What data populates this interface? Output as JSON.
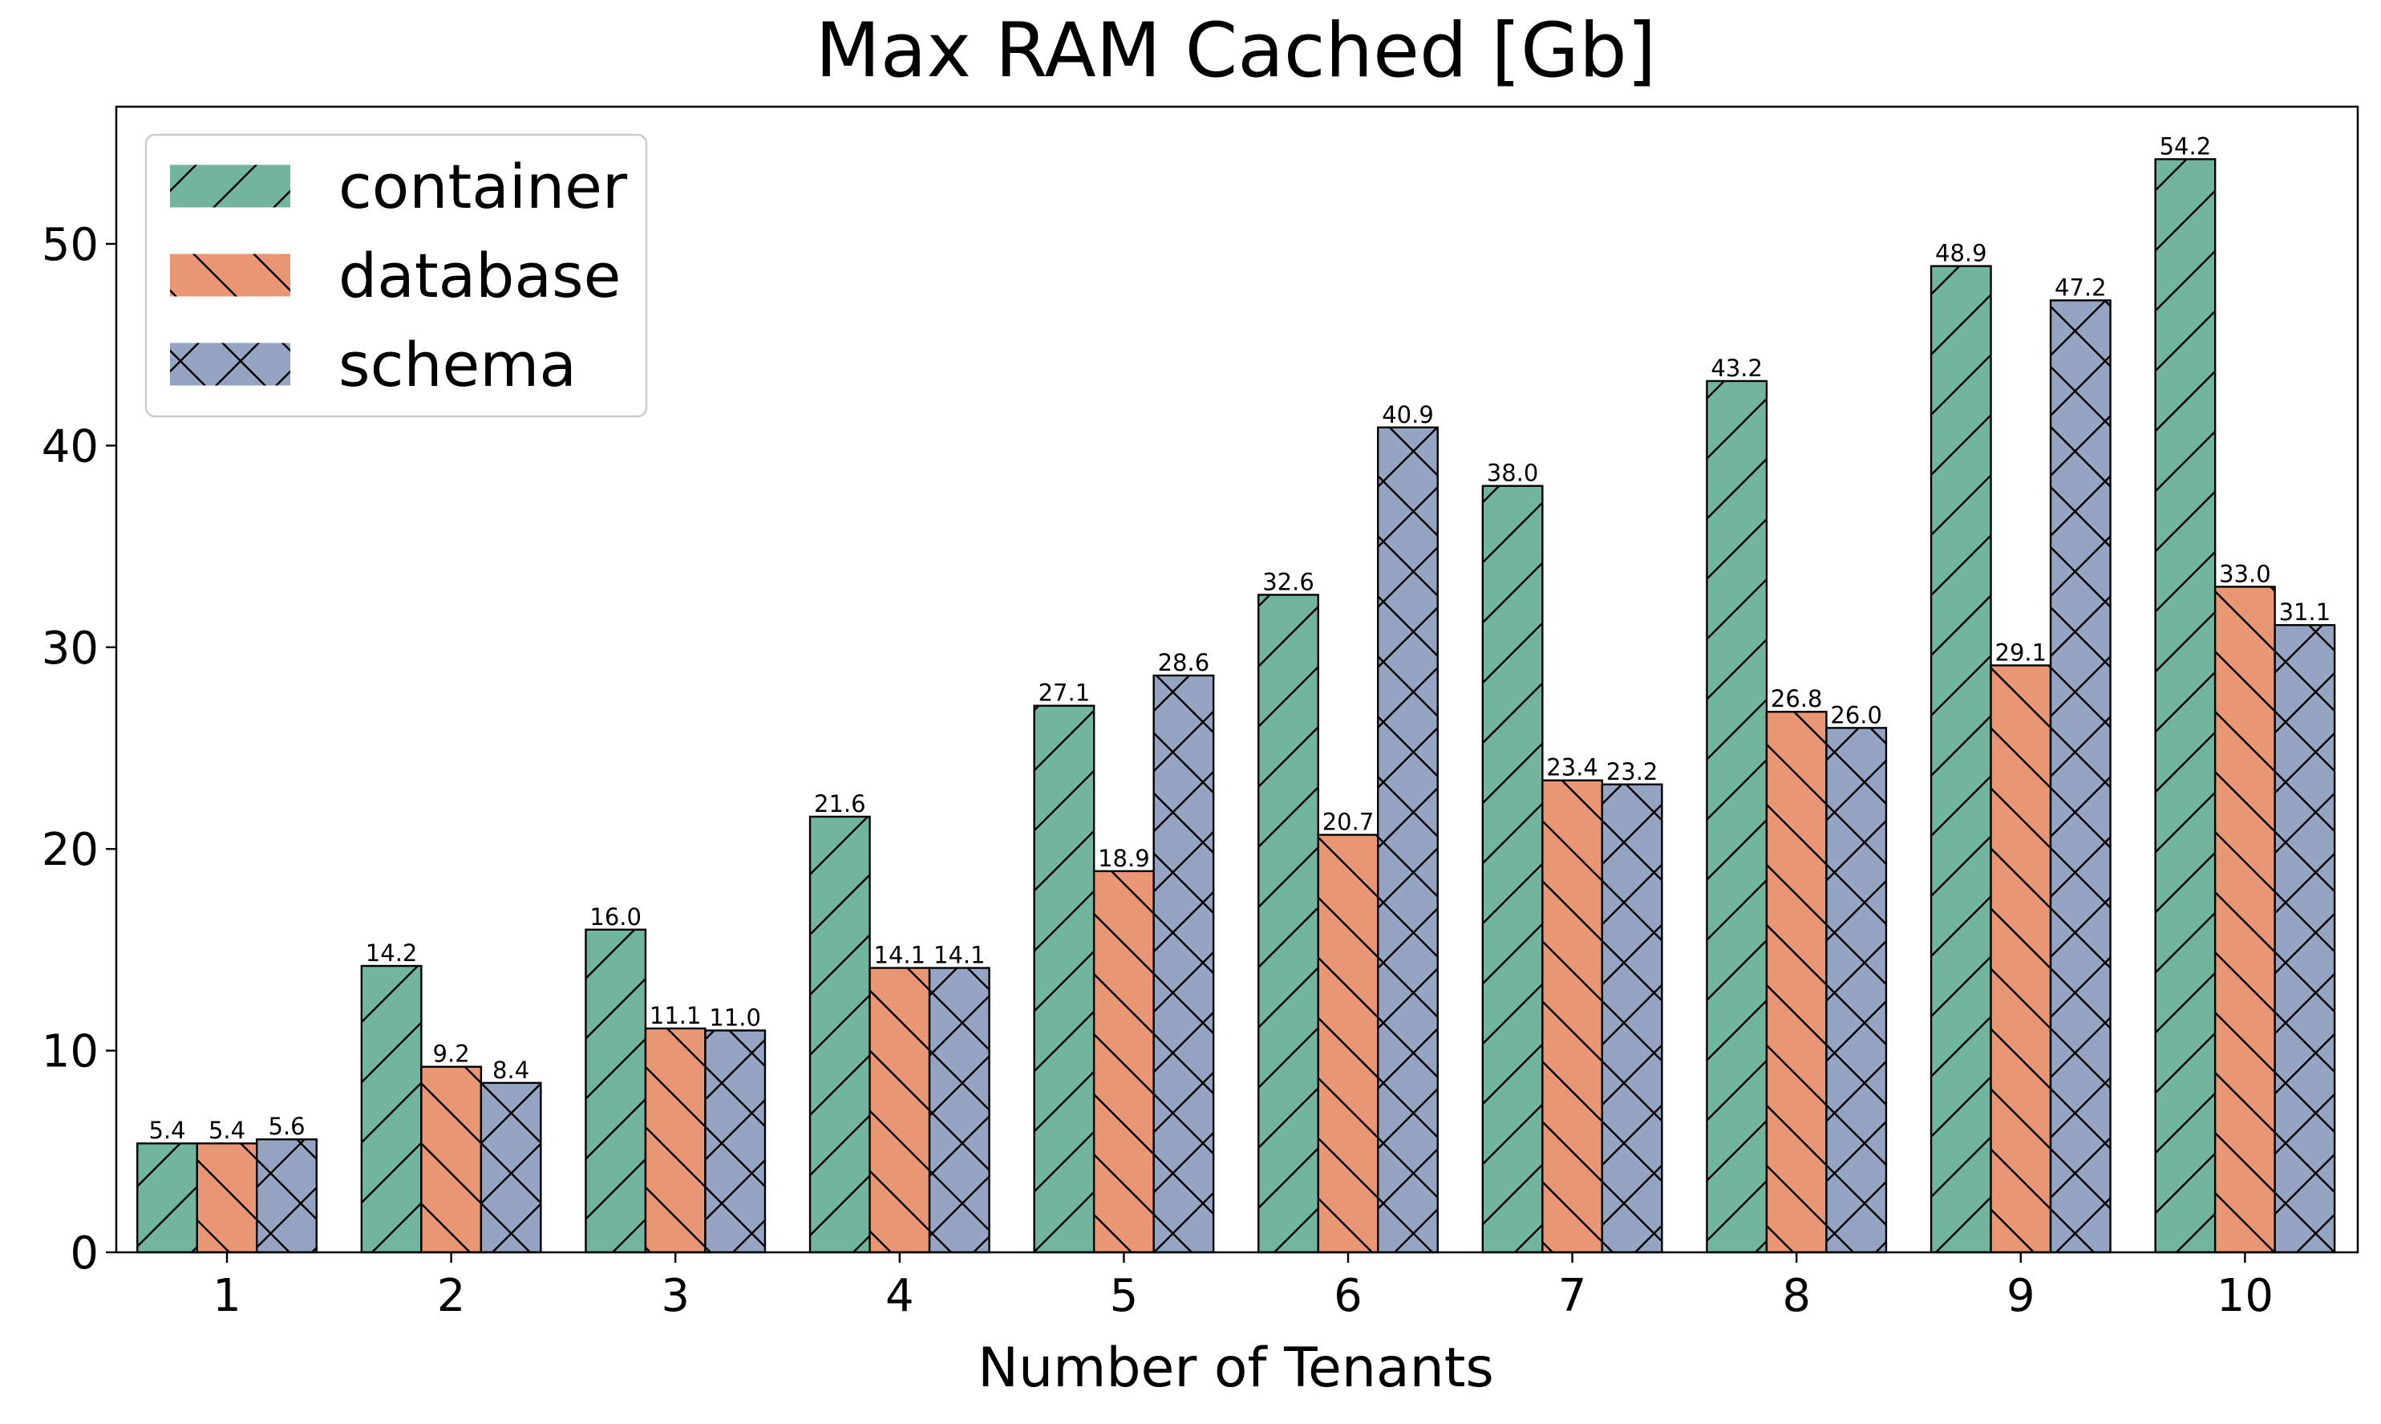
{
  "chart_data": {
    "type": "bar",
    "title": "Max RAM Cached [Gb]",
    "xlabel": "Number of Tenants",
    "ylabel": "",
    "categories": [
      "1",
      "2",
      "3",
      "4",
      "5",
      "6",
      "7",
      "8",
      "9",
      "10"
    ],
    "ylim": [
      0,
      57
    ],
    "yticks": [
      0,
      10,
      20,
      30,
      40,
      50
    ],
    "grid": false,
    "legend_position": "top-left",
    "series": [
      {
        "name": "container",
        "color": "#72b59e",
        "hatch": "forward-slash",
        "values": [
          5.4,
          14.2,
          16.0,
          21.6,
          27.1,
          32.6,
          38.0,
          43.2,
          48.9,
          54.2
        ],
        "labels": [
          "5.4",
          "14.2",
          "16.0",
          "21.6",
          "27.1",
          "32.6",
          "38.0",
          "43.2",
          "48.9",
          "54.2"
        ]
      },
      {
        "name": "database",
        "color": "#e89674",
        "hatch": "back-slash",
        "values": [
          5.4,
          9.2,
          11.1,
          14.1,
          18.9,
          20.7,
          23.4,
          26.8,
          29.1,
          33.0
        ],
        "labels": [
          "5.4",
          "9.2",
          "11.1",
          "14.1",
          "18.9",
          "20.7",
          "23.4",
          "26.8",
          "29.1",
          "33.0"
        ]
      },
      {
        "name": "schema",
        "color": "#95a4c3",
        "hatch": "cross",
        "values": [
          5.6,
          8.4,
          11.0,
          14.1,
          28.6,
          40.9,
          23.2,
          26.0,
          47.2,
          31.1
        ],
        "labels": [
          "5.6",
          "8.4",
          "11.0",
          "14.1",
          "28.6",
          "40.9",
          "23.2",
          "26.0",
          "47.2",
          "31.1"
        ]
      }
    ]
  }
}
